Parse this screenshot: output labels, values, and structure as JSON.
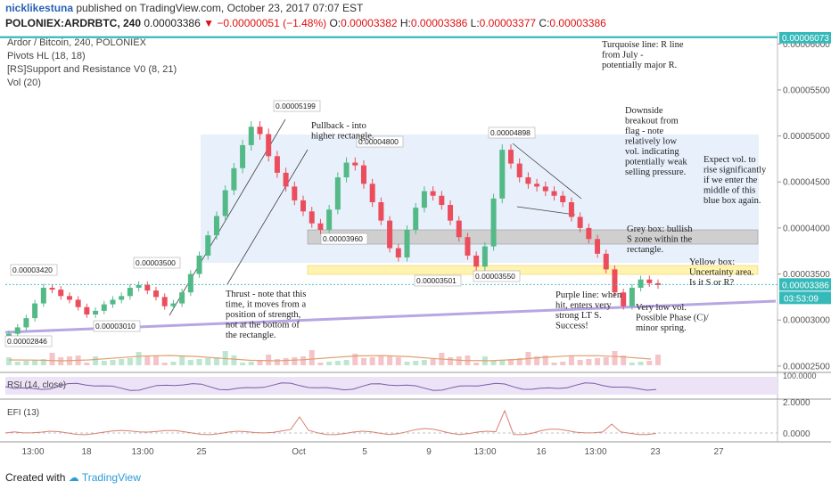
{
  "header": {
    "user": "nicklikestuna",
    "published": "published on TradingView.com, October 23, 2017 07:07 EST",
    "symbol": "POLONIEX:ARDRBTC, 240",
    "last": "0.00003386",
    "change": "−0.00000051 (−1.48%)",
    "o_label": "O:",
    "o": "0.00003382",
    "h_label": "H:",
    "h": "0.00003386",
    "l_label": "L:",
    "l": "0.00003377",
    "c_label": "C:",
    "c": "0.00003386"
  },
  "legend": [
    "Ardor / Bitcoin, 240, POLONIEX",
    "Pivots HL (18, 18)",
    "[RS]Support and Resistance V0 (8, 21)",
    "Vol (20)"
  ],
  "footer": {
    "created": "Created with",
    "brand": "TradingView"
  },
  "colors": {
    "up": "#53b987",
    "down": "#eb4d5c",
    "turquoise": "#35b9b9",
    "purple": "#b7a6e3",
    "grey_box": "#cfcfcf",
    "yellow_box": "#fff3b0",
    "blue_box": "#e8f0fb",
    "volume": "#e0a070",
    "rsi": "#7a5ba8",
    "efi": "#d88070"
  },
  "chart_data": {
    "type": "candlestick",
    "price_range": [
      2.45e-05,
      6.09e-05
    ],
    "x_ticks": [
      "13:00",
      "18",
      "13:00",
      "25",
      "Oct",
      "5",
      "9",
      "13:00",
      "16",
      "13:00",
      "23",
      "27"
    ],
    "y_ticks": [
      "0.00006000",
      "0.00005500",
      "0.00005000",
      "0.00004500",
      "0.00004000",
      "0.00003500",
      "0.00003000",
      "0.00002500"
    ],
    "price_badges": {
      "turquoise": "0.00006073",
      "last": "0.00003386",
      "countdown": "03:53:09"
    },
    "closes": [
      2.85e-05,
      2.92e-05,
      3.02e-05,
      3.18e-05,
      3.35e-05,
      3.33e-05,
      3.26e-05,
      3.22e-05,
      3.14e-05,
      3.06e-05,
      3.1e-05,
      3.17e-05,
      3.22e-05,
      3.26e-05,
      3.35e-05,
      3.38e-05,
      3.32e-05,
      3.25e-05,
      3.15e-05,
      3.18e-05,
      3.3e-05,
      3.5e-05,
      3.7e-05,
      3.92e-05,
      4.13e-05,
      4.41e-05,
      4.65e-05,
      4.9e-05,
      5.1e-05,
      5.02e-05,
      4.78e-05,
      4.6e-05,
      4.45e-05,
      4.3e-05,
      4.18e-05,
      4.05e-05,
      3.98e-05,
      4.2e-05,
      4.55e-05,
      4.71e-05,
      4.68e-05,
      4.48e-05,
      4.28e-05,
      4.08e-05,
      3.78e-05,
      3.68e-05,
      3.98e-05,
      4.22e-05,
      4.4e-05,
      4.35e-05,
      4.25e-05,
      4.08e-05,
      3.9e-05,
      3.7e-05,
      3.58e-05,
      3.8e-05,
      4.32e-05,
      4.85e-05,
      4.7e-05,
      4.55e-05,
      4.48e-05,
      4.45e-05,
      4.4e-05,
      4.35e-05,
      4.28e-05,
      4.12e-05,
      4e-05,
      3.88e-05,
      3.72e-05,
      3.55e-05,
      3.3e-05,
      3.15e-05,
      3.35e-05,
      3.44e-05,
      3.4e-05,
      3.38e-05
    ],
    "pivot_labels": [
      {
        "value": "0.00003420"
      },
      {
        "value": "0.00003500"
      },
      {
        "value": "0.00005199"
      },
      {
        "value": "0.00004800"
      },
      {
        "value": "0.00004898"
      },
      {
        "value": "0.00003960"
      },
      {
        "value": "0.00003501"
      },
      {
        "value": "0.00003550"
      },
      {
        "value": "0.00003010"
      },
      {
        "value": "0.00002846"
      }
    ],
    "rsi": {
      "label": "RSI (14, close)",
      "y_ticks": [
        "100.0000"
      ]
    },
    "efi": {
      "label": "EFI (13)",
      "y_ticks": [
        "2.0000",
        "0.0000"
      ]
    },
    "annotations": [
      {
        "lines": [
          "Turquoise line: R line",
          "from July -",
          "potentially major R."
        ]
      },
      {
        "lines": [
          "Pullback - into",
          "higher rectangle."
        ]
      },
      {
        "lines": [
          "Downside",
          "breakout from",
          "flag - note",
          "relatively low",
          "vol. indicating",
          "potentially weak",
          "selling pressure."
        ]
      },
      {
        "lines": [
          "Expect vol. to",
          "rise significantly",
          "if we enter the",
          "middle of this",
          "blue box again."
        ]
      },
      {
        "lines": [
          "Grey box: bullish",
          "S zone within the",
          "rectangle."
        ]
      },
      {
        "lines": [
          "Yellow box:",
          "Uncertainty area.",
          "Is it S or R?"
        ]
      },
      {
        "lines": [
          "Thrust - note that this",
          "time, it moves from a",
          "position of strength,",
          "not at the bottom of",
          "the rectangle."
        ]
      },
      {
        "lines": [
          "Purple line: when",
          "hit, enters very",
          "strong LT S.",
          "Success!"
        ]
      },
      {
        "lines": [
          "Very low vol.",
          "Possible Phase (C)/",
          "minor spring."
        ]
      }
    ]
  }
}
